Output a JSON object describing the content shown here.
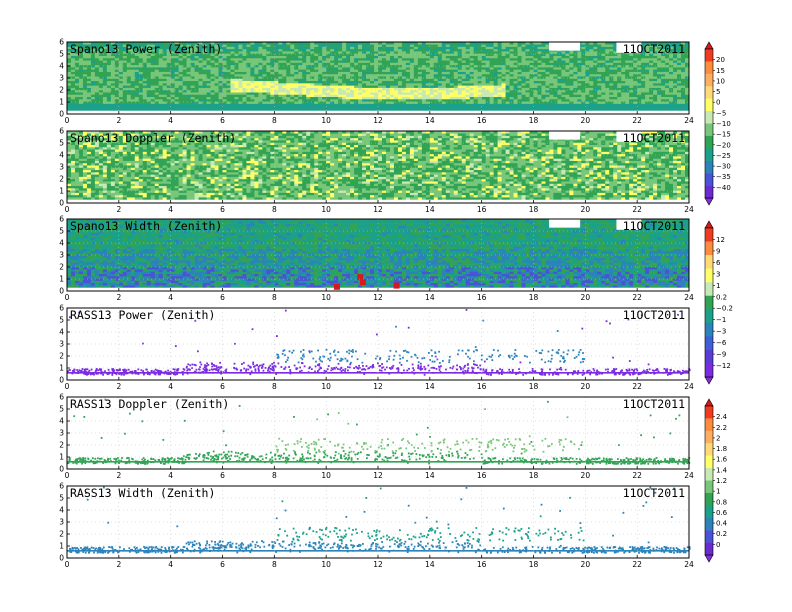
{
  "chart_data": [
    {
      "type": "heatmap",
      "title": "Spano13 Power (Zenith)",
      "date": "11OCT2011",
      "xlim": [
        0,
        24
      ],
      "ylim": [
        0,
        6
      ],
      "xticks": [
        0,
        2,
        4,
        6,
        8,
        10,
        12,
        14,
        16,
        18,
        20,
        22,
        24
      ],
      "yticks": [
        0,
        1,
        2,
        3,
        4,
        5,
        6
      ],
      "style": "dense-power"
    },
    {
      "type": "heatmap",
      "title": "Spano13 Doppler (Zenith)",
      "date": "11OCT2011",
      "xlim": [
        0,
        24
      ],
      "ylim": [
        0,
        6
      ],
      "xticks": [
        0,
        2,
        4,
        6,
        8,
        10,
        12,
        14,
        16,
        18,
        20,
        22,
        24
      ],
      "yticks": [
        0,
        1,
        2,
        3,
        4,
        5,
        6
      ],
      "style": "dense-doppler"
    },
    {
      "type": "heatmap",
      "title": "Spano13 Width (Zenith)",
      "date": "11OCT2011",
      "xlim": [
        0,
        24
      ],
      "ylim": [
        0,
        6
      ],
      "xticks": [
        0,
        2,
        4,
        6,
        8,
        10,
        12,
        14,
        16,
        18,
        20,
        22,
        24
      ],
      "yticks": [
        0,
        1,
        2,
        3,
        4,
        5,
        6
      ],
      "style": "dense-width"
    },
    {
      "type": "scatter",
      "title": "RASS13 Power (Zenith)",
      "date": "11OCT2011",
      "xlim": [
        0,
        24
      ],
      "ylim": [
        0,
        6
      ],
      "xticks": [
        0,
        2,
        4,
        6,
        8,
        10,
        12,
        14,
        16,
        18,
        20,
        22,
        24
      ],
      "yticks": [
        0,
        1,
        2,
        3,
        4,
        5,
        6
      ],
      "style": "rass-power"
    },
    {
      "type": "scatter",
      "title": "RASS13 Doppler (Zenith)",
      "date": "11OCT2011",
      "xlim": [
        0,
        24
      ],
      "ylim": [
        0,
        6
      ],
      "xticks": [
        0,
        2,
        4,
        6,
        8,
        10,
        12,
        14,
        16,
        18,
        20,
        22,
        24
      ],
      "yticks": [
        0,
        1,
        2,
        3,
        4,
        5,
        6
      ],
      "style": "rass-doppler"
    },
    {
      "type": "scatter",
      "title": "RASS13 Width (Zenith)",
      "date": "11OCT2011",
      "xlim": [
        0,
        24
      ],
      "ylim": [
        0,
        6
      ],
      "xticks": [
        0,
        2,
        4,
        6,
        8,
        10,
        12,
        14,
        16,
        18,
        20,
        22,
        24
      ],
      "yticks": [
        0,
        1,
        2,
        3,
        4,
        5,
        6
      ],
      "style": "rass-width"
    }
  ],
  "colorbars": [
    {
      "labels": [
        "20",
        "15",
        "10",
        "5",
        "0",
        "−5",
        "−10",
        "−15",
        "−20",
        "−25",
        "−30",
        "−35",
        "−40"
      ],
      "colors": [
        "#d7191c",
        "#f03b20",
        "#fd8d3c",
        "#fdae61",
        "#fed976",
        "#ffff66",
        "#c7e9b4",
        "#78c679",
        "#31a354",
        "#1ba089",
        "#2b83ba",
        "#4a52d6",
        "#6a2bd0",
        "#8a2be2"
      ]
    },
    {
      "labels": [
        "12",
        "9",
        "6",
        "3",
        "1",
        "0.2",
        "−0.2",
        "−1",
        "−3",
        "−6",
        "−9",
        "−12"
      ],
      "colors": [
        "#d7191c",
        "#f03b20",
        "#fd8d3c",
        "#fed976",
        "#ffff66",
        "#c7e9b4",
        "#31a354",
        "#1ba089",
        "#2b83ba",
        "#3f5fd8",
        "#5a3cd4",
        "#7b2be0",
        "#8a2be2"
      ]
    },
    {
      "labels": [
        "2.4",
        "2.2",
        "2",
        "1.8",
        "1.6",
        "1.4",
        "1.2",
        "1",
        "0.8",
        "0.6",
        "0.4",
        "0.2",
        "0"
      ],
      "colors": [
        "#d7191c",
        "#f03b20",
        "#fd8d3c",
        "#fdae61",
        "#fed976",
        "#ffff66",
        "#c7e9b4",
        "#78c679",
        "#31a354",
        "#1ba089",
        "#2b83ba",
        "#4a52d6",
        "#6a2bd0",
        "#8a2be2"
      ]
    }
  ]
}
